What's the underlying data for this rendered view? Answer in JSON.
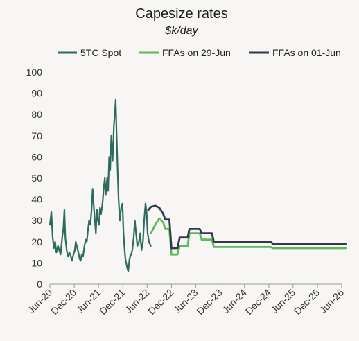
{
  "chart_data": {
    "type": "line",
    "title": "Capesize rates",
    "subtitle": "$k/day",
    "xlabel": "",
    "ylabel": "",
    "ylim": [
      0,
      100
    ],
    "y_ticks": [
      0,
      10,
      20,
      30,
      40,
      50,
      60,
      70,
      80,
      90,
      100
    ],
    "x_ticks": [
      "Jun-20",
      "Dec-20",
      "Jun-21",
      "Dec-21",
      "Jun-22",
      "Dec-22",
      "Jun-23",
      "Dec-23",
      "Jun-24",
      "Dec-24",
      "Jun-25",
      "Dec-25",
      "Jun-26"
    ],
    "grid": false,
    "legend_position": "top",
    "series": [
      {
        "name": "5TC Spot",
        "color": "#2e6b5e",
        "points": [
          [
            "2020-06-01",
            28
          ],
          [
            "2020-06-12",
            34
          ],
          [
            "2020-06-22",
            22
          ],
          [
            "2020-07-01",
            17
          ],
          [
            "2020-07-10",
            20
          ],
          [
            "2020-07-20",
            15
          ],
          [
            "2020-08-01",
            18
          ],
          [
            "2020-08-10",
            16
          ],
          [
            "2020-08-20",
            14
          ],
          [
            "2020-09-01",
            22
          ],
          [
            "2020-09-10",
            26
          ],
          [
            "2020-09-18",
            35
          ],
          [
            "2020-09-25",
            22
          ],
          [
            "2020-10-05",
            16
          ],
          [
            "2020-10-15",
            13
          ],
          [
            "2020-10-25",
            15
          ],
          [
            "2020-11-05",
            13
          ],
          [
            "2020-11-15",
            11
          ],
          [
            "2020-11-25",
            14
          ],
          [
            "2020-12-05",
            16
          ],
          [
            "2020-12-12",
            20
          ],
          [
            "2020-12-20",
            18
          ],
          [
            "2021-01-01",
            15
          ],
          [
            "2021-01-10",
            12
          ],
          [
            "2021-01-18",
            11
          ],
          [
            "2021-01-26",
            14
          ],
          [
            "2021-02-05",
            13
          ],
          [
            "2021-02-15",
            18
          ],
          [
            "2021-02-25",
            21
          ],
          [
            "2021-03-05",
            20
          ],
          [
            "2021-03-15",
            26
          ],
          [
            "2021-03-22",
            30
          ],
          [
            "2021-04-01",
            28
          ],
          [
            "2021-04-10",
            35
          ],
          [
            "2021-04-18",
            45
          ],
          [
            "2021-04-25",
            38
          ],
          [
            "2021-05-05",
            30
          ],
          [
            "2021-05-12",
            24
          ],
          [
            "2021-05-20",
            35
          ],
          [
            "2021-05-28",
            30
          ],
          [
            "2021-06-05",
            28
          ],
          [
            "2021-06-12",
            36
          ],
          [
            "2021-06-20",
            33
          ],
          [
            "2021-07-01",
            38
          ],
          [
            "2021-07-10",
            45
          ],
          [
            "2021-07-18",
            50
          ],
          [
            "2021-07-25",
            42
          ],
          [
            "2021-08-05",
            50
          ],
          [
            "2021-08-12",
            44
          ],
          [
            "2021-08-20",
            60
          ],
          [
            "2021-08-28",
            54
          ],
          [
            "2021-09-05",
            70
          ],
          [
            "2021-09-15",
            58
          ],
          [
            "2021-09-25",
            75
          ],
          [
            "2021-10-03",
            82
          ],
          [
            "2021-10-08",
            87
          ],
          [
            "2021-10-15",
            70
          ],
          [
            "2021-10-22",
            55
          ],
          [
            "2021-10-30",
            40
          ],
          [
            "2021-11-08",
            30
          ],
          [
            "2021-11-18",
            36
          ],
          [
            "2021-11-28",
            38
          ],
          [
            "2021-12-05",
            25
          ],
          [
            "2021-12-12",
            18
          ],
          [
            "2021-12-20",
            12
          ],
          [
            "2022-01-01",
            8
          ],
          [
            "2022-01-10",
            6
          ],
          [
            "2022-01-20",
            12
          ],
          [
            "2022-02-01",
            14
          ],
          [
            "2022-02-10",
            16
          ],
          [
            "2022-02-20",
            22
          ],
          [
            "2022-03-01",
            30
          ],
          [
            "2022-03-10",
            24
          ],
          [
            "2022-03-20",
            18
          ],
          [
            "2022-04-01",
            20
          ],
          [
            "2022-04-10",
            24
          ],
          [
            "2022-04-20",
            16
          ],
          [
            "2022-05-01",
            20
          ],
          [
            "2022-05-10",
            30
          ],
          [
            "2022-05-20",
            38
          ],
          [
            "2022-05-28",
            34
          ],
          [
            "2022-06-05",
            24
          ],
          [
            "2022-06-15",
            20
          ],
          [
            "2022-06-28",
            18
          ]
        ]
      },
      {
        "name": "FFAs on 29-Jun",
        "color": "#5cb85c",
        "points": [
          [
            "2022-07-01",
            24
          ],
          [
            "2022-08-01",
            28
          ],
          [
            "2022-09-01",
            31
          ],
          [
            "2022-10-01",
            29
          ],
          [
            "2022-10-15",
            26
          ],
          [
            "2022-11-15",
            26
          ],
          [
            "2022-12-01",
            14
          ],
          [
            "2023-01-15",
            14
          ],
          [
            "2023-02-01",
            18
          ],
          [
            "2023-04-01",
            18
          ],
          [
            "2023-04-15",
            24
          ],
          [
            "2023-07-01",
            24
          ],
          [
            "2023-07-15",
            21
          ],
          [
            "2023-10-01",
            21
          ],
          [
            "2023-10-15",
            17.5
          ],
          [
            "2024-12-15",
            17.5
          ],
          [
            "2025-01-01",
            17
          ],
          [
            "2026-06-30",
            17
          ]
        ]
      },
      {
        "name": "FFAs on 01-Jun",
        "color": "#2f3a4a",
        "points": [
          [
            "2022-06-10",
            35
          ],
          [
            "2022-07-01",
            36.5
          ],
          [
            "2022-08-01",
            37
          ],
          [
            "2022-09-01",
            36
          ],
          [
            "2022-10-01",
            33
          ],
          [
            "2022-10-15",
            30.5
          ],
          [
            "2022-11-15",
            30.5
          ],
          [
            "2022-12-01",
            17
          ],
          [
            "2023-01-15",
            17
          ],
          [
            "2023-02-01",
            22
          ],
          [
            "2023-04-01",
            22
          ],
          [
            "2023-04-15",
            26
          ],
          [
            "2023-07-01",
            26
          ],
          [
            "2023-07-15",
            24
          ],
          [
            "2023-10-01",
            24
          ],
          [
            "2023-10-15",
            20
          ],
          [
            "2024-12-15",
            20
          ],
          [
            "2025-01-01",
            19
          ],
          [
            "2026-06-30",
            19
          ]
        ]
      }
    ]
  }
}
